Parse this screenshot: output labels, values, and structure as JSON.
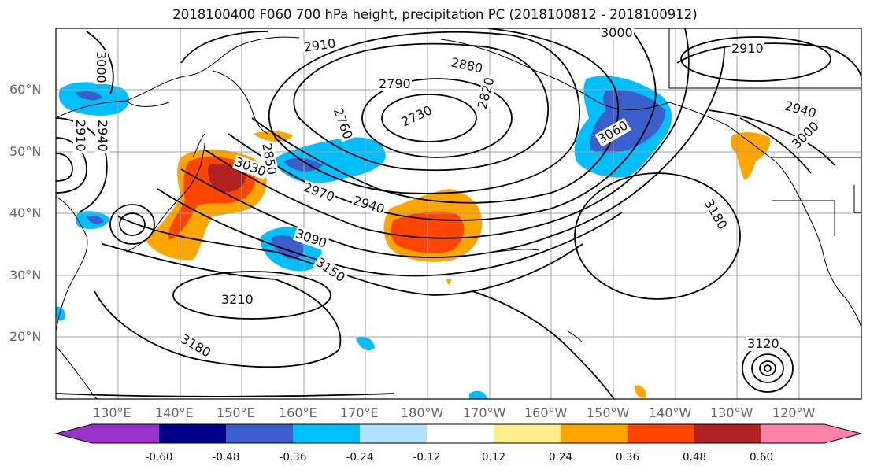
{
  "title": "2018100400 F060 700 hPa height, precipitation PC (2018100812 - 2018100912)",
  "lat_labels": [
    "60°N",
    "50°N",
    "40°N",
    "30°N",
    "20°N"
  ],
  "lon_labels": [
    "130°E",
    "140°E",
    "150°E",
    "160°E",
    "170°E",
    "180°W",
    "170°W",
    "160°W",
    "150°W",
    "140°W",
    "130°W",
    "120°W"
  ],
  "contour_labels": [
    "3000",
    "2910",
    "2880",
    "2790",
    "2730",
    "2760",
    "2820",
    "2850",
    "3030",
    "2970",
    "2940",
    "3090",
    "3150",
    "3210",
    "3180",
    "3060",
    "3000",
    "2910",
    "2940",
    "3180",
    "3000",
    "3120",
    "2910",
    "2940"
  ],
  "colorbar": {
    "ticks": [
      "-0.60",
      "-0.48",
      "-0.36",
      "-0.24",
      "-0.12",
      "0.12",
      "0.24",
      "0.36",
      "0.48",
      "0.60"
    ],
    "colors": {
      "lt_-0.60": "#9a32cd",
      "-0.60_-0.48": "#00008b",
      "-0.48_-0.36": "#3a5fcd",
      "-0.36_-0.24": "#00bfff",
      "-0.24_-0.12": "#b0e2ff",
      "-0.12_0.12": "#ffffff",
      "0.12_0.24": "#ffec8b",
      "0.24_0.36": "#ffa500",
      "0.36_0.48": "#ff4500",
      "0.48_0.60": "#b22222",
      "gt_0.60": "#ff82ab"
    }
  }
}
